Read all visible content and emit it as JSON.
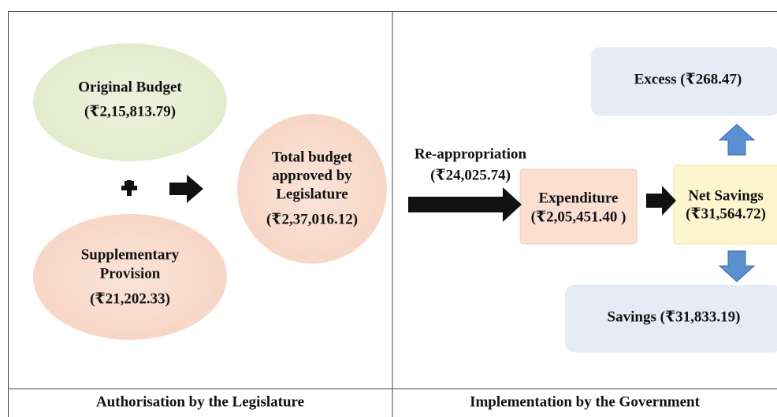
{
  "left": {
    "original_budget": {
      "lines": [
        "Original Budget"
      ],
      "amount": "(₹2,15,813.79)"
    },
    "supplementary_provision": {
      "lines": [
        "Supplementary",
        "Provision"
      ],
      "amount": "(₹21,202.33)"
    },
    "total_budget": {
      "lines": [
        "Total budget",
        "approved by",
        "Legislature"
      ],
      "amount": "(₹2,37,016.12)"
    },
    "caption": "Authorisation by the Legislature"
  },
  "right": {
    "reappropriation": {
      "lines": [
        "Re-appropriation"
      ],
      "amount": "(₹24,025.74)"
    },
    "expenditure": {
      "lines": [
        "Expenditure"
      ],
      "amount": "(₹2,05,451.40 )"
    },
    "net_savings": {
      "lines": [
        "Net Savings"
      ],
      "amount": "(₹31,564.72)"
    },
    "excess": "Excess (₹268.47)",
    "savings": "Savings (₹31,833.19)",
    "caption": "Implementation by the Government"
  }
}
